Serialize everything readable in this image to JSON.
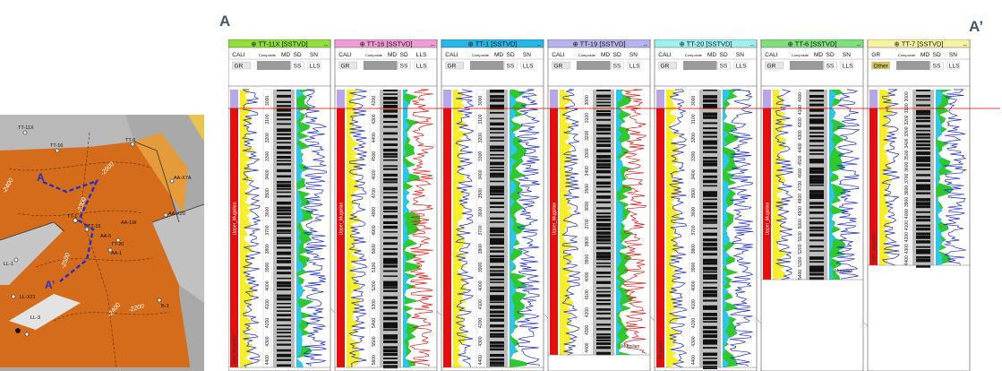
{
  "section_labels": {
    "start": "A",
    "end": "A’"
  },
  "map": {
    "wells": [
      "TT-11X",
      "TT-16",
      "TT-1",
      "TT-19",
      "TT-20",
      "TT-6",
      "AA-X7A",
      "AA-1",
      "AA-1W",
      "AA-X20",
      "AA-5",
      "LL-1",
      "LL-X21",
      "LL-3",
      "B-3"
    ],
    "contours": [
      "-2400",
      "-2300",
      "-2600",
      "-2500",
      "-2400",
      "-2200"
    ],
    "line_labels": {
      "a": "A",
      "a_prime": "A’"
    }
  },
  "wells": [
    {
      "name": "TT-11X [SSTVD]",
      "color": "#8fe03a",
      "top_tracks": [
        "CALI",
        "Composite",
        "MD",
        "SD",
        "SN"
      ],
      "second_tracks": [
        "GR",
        "SS",
        "LLS"
      ],
      "depths": [
        "3000",
        "3100",
        "3200",
        "3300",
        "3400",
        "3500",
        "3600",
        "3700",
        "3800",
        "3900",
        "4000",
        "4100",
        "4200",
        "4300",
        "4400"
      ],
      "formation": "Upper_Mugolian",
      "formation2": "Inter_Mugolian"
    },
    {
      "name": "TT-16 [SSTVD]",
      "color": "#f39bd6",
      "top_tracks": [
        "CALI",
        "Composite",
        "MD",
        "SD",
        "LLS"
      ],
      "second_tracks": [
        "GR",
        "SS",
        "LLS"
      ],
      "depths": [
        "4200",
        "4300",
        "4400",
        "4500",
        "4600",
        "4700",
        "4800",
        "4900",
        "5000",
        "5100",
        "5200",
        "5300",
        "5400",
        "5500",
        "5600"
      ],
      "formation": "Upper_Mugolian",
      "formation2": ""
    },
    {
      "name": "TT-1 [SSTVD]",
      "color": "#26b7ea",
      "top_tracks": [
        "CALI",
        "Composite",
        "MD",
        "SD",
        "SN"
      ],
      "second_tracks": [
        "GR",
        "SS",
        "LLS"
      ],
      "depths": [
        "3000",
        "3100",
        "3200",
        "3300",
        "3400",
        "3500",
        "3600",
        "3700",
        "3800",
        "3900",
        "4000",
        "4100",
        "4200",
        "4300",
        "4400"
      ],
      "formation": "",
      "formation2": ""
    },
    {
      "name": "TT-19 [SSTVD]",
      "color": "#b8b3ee",
      "top_tracks": [
        "CALI",
        "Composite",
        "MD",
        "SD",
        "SN"
      ],
      "second_tracks": [
        "GR",
        "SS",
        "LLS"
      ],
      "depths": [
        "3000",
        "3100",
        "3200",
        "3300",
        "3400",
        "3500",
        "3600",
        "3700",
        "3800",
        "3900",
        "4000",
        "4100",
        "4200",
        "4300",
        "4400"
      ],
      "formation": "Upper_Mugolian",
      "formation2": "",
      "annotation": "Mugolian"
    },
    {
      "name": "TT-20 [SSTVD]",
      "color": "#9df0f0",
      "top_tracks": [
        "CALI",
        "Composite",
        "MD",
        "SD",
        "SN"
      ],
      "second_tracks": [
        "GR",
        "SS",
        "LLS"
      ],
      "depths": [
        "3000",
        "3100",
        "3200",
        "3300",
        "3400",
        "3500",
        "3600",
        "3700",
        "3800",
        "3900",
        "4000",
        "4100",
        "4200",
        "4300",
        "4400"
      ],
      "formation": "",
      "formation2": "Mugolian"
    },
    {
      "name": "TT-6 [SSTVD]",
      "color": "#7ee07c",
      "top_tracks": [
        "CALI",
        "Composite",
        "MD",
        "SD",
        "SN"
      ],
      "second_tracks": [
        "GR",
        "SS",
        "LLS"
      ],
      "depths": [
        "4000",
        "4100",
        "4200",
        "4300",
        "4400",
        "4500",
        "4600",
        "4700",
        "4800",
        "4900",
        "5000",
        "5100",
        "5200",
        "5300",
        "5400"
      ],
      "formation": "Upper_Mugolian",
      "formation2": "",
      "annotation": "Mugolian"
    },
    {
      "name": "TT-7 [SSTVD]",
      "color": "#f7f2a0",
      "top_tracks": [
        "GR",
        "Composite",
        "MD",
        "SD",
        "SN"
      ],
      "second_tracks": [
        "Other",
        "SS",
        "LLS"
      ],
      "depths": [
        "3000",
        "3100",
        "3200",
        "3300",
        "3400",
        "3500",
        "3600",
        "3700",
        "3800",
        "3900",
        "4000",
        "4100",
        "4200",
        "4300",
        "4400"
      ],
      "formation": "",
      "formation2": "Inter_Mugolian"
    }
  ]
}
